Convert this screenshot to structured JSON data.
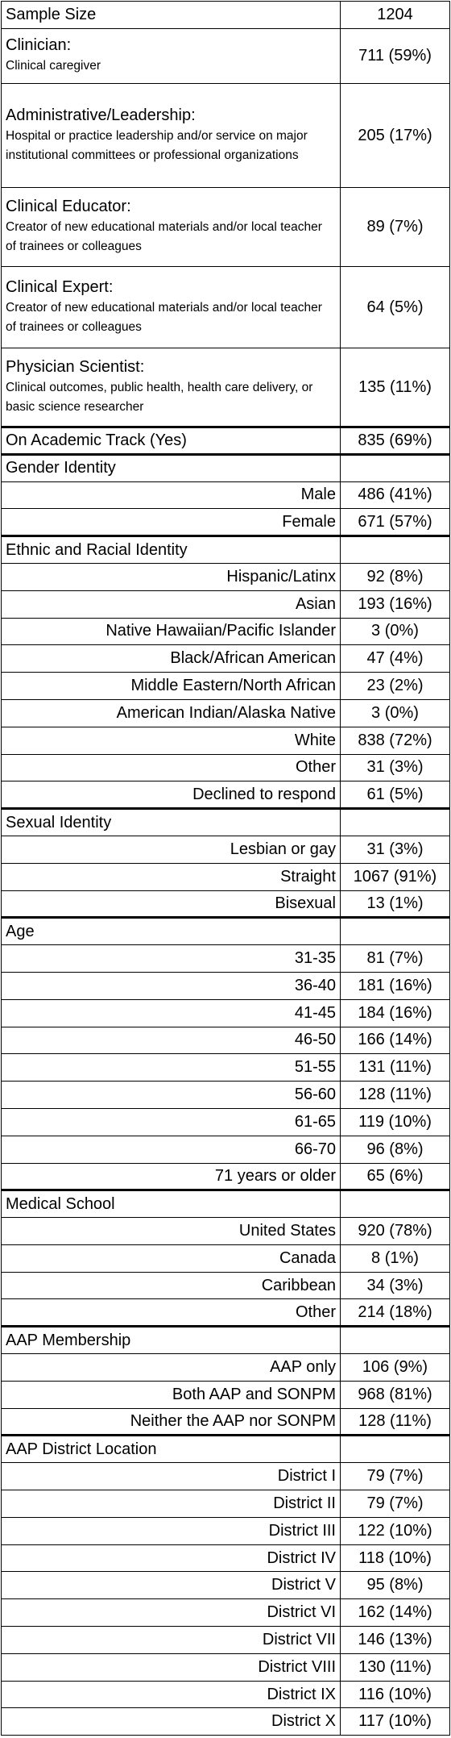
{
  "table": {
    "summary": {
      "label": "Sample Size",
      "value": "1204"
    },
    "roles": [
      {
        "label": "Clinician:",
        "description": "Clinical caregiver",
        "value": "711 (59%)"
      },
      {
        "label": "Administrative/Leadership:",
        "description": "Hospital or practice leadership and/or service on major institutional committees or professional organizations",
        "value": "205 (17%)"
      },
      {
        "label": "Clinical Educator:",
        "description": "Creator of new educational materials and/or local teacher of trainees or colleagues",
        "value": "89 (7%)"
      },
      {
        "label": "Clinical Expert:",
        "description": "Creator of new educational materials and/or local teacher of trainees or colleagues",
        "value": "64 (5%)"
      },
      {
        "label": "Physician Scientist:",
        "description": "Clinical outcomes, public health, health care delivery, or basic science researcher",
        "value": "135 (11%)"
      }
    ],
    "academic": {
      "label": "On Academic Track (Yes)",
      "value": "835 (69%)"
    },
    "sections": [
      {
        "title": "Gender Identity",
        "rows": [
          {
            "label": "Male",
            "value": "486 (41%)"
          },
          {
            "label": "Female",
            "value": "671 (57%)"
          }
        ]
      },
      {
        "title": "Ethnic and Racial Identity",
        "rows": [
          {
            "label": "Hispanic/Latinx",
            "value": "92 (8%)"
          },
          {
            "label": "Asian",
            "value": "193 (16%)"
          },
          {
            "label": "Native Hawaiian/Pacific Islander",
            "value": "3 (0%)"
          },
          {
            "label": "Black/African American",
            "value": "47 (4%)"
          },
          {
            "label": "Middle Eastern/North African",
            "value": "23 (2%)"
          },
          {
            "label": "American Indian/Alaska Native",
            "value": "3 (0%)"
          },
          {
            "label": "White",
            "value": "838 (72%)"
          },
          {
            "label": "Other",
            "value": "31 (3%)"
          },
          {
            "label": "Declined to respond",
            "value": "61 (5%)"
          }
        ]
      },
      {
        "title": "Sexual Identity",
        "rows": [
          {
            "label": "Lesbian or gay",
            "value": "31 (3%)"
          },
          {
            "label": "Straight",
            "value": "1067 (91%)"
          },
          {
            "label": "Bisexual",
            "value": "13 (1%)"
          }
        ]
      },
      {
        "title": "Age",
        "rows": [
          {
            "label": "31-35",
            "value": "81 (7%)"
          },
          {
            "label": "36-40",
            "value": "181 (16%)"
          },
          {
            "label": "41-45",
            "value": "184 (16%)"
          },
          {
            "label": "46-50",
            "value": "166 (14%)"
          },
          {
            "label": "51-55",
            "value": "131 (11%)"
          },
          {
            "label": "56-60",
            "value": "128 (11%)"
          },
          {
            "label": "61-65",
            "value": "119 (10%)"
          },
          {
            "label": "66-70",
            "value": "96 (8%)"
          },
          {
            "label": "71 years or older",
            "value": "65 (6%)"
          }
        ]
      },
      {
        "title": "Medical School",
        "rows": [
          {
            "label": "United States",
            "value": "920 (78%)"
          },
          {
            "label": "Canada",
            "value": "8 (1%)"
          },
          {
            "label": "Caribbean",
            "value": "34 (3%)"
          },
          {
            "label": "Other",
            "value": "214 (18%)"
          }
        ]
      },
      {
        "title": "AAP Membership",
        "rows": [
          {
            "label": "AAP only",
            "value": "106 (9%)"
          },
          {
            "label": "Both AAP and SONPM",
            "value": "968 (81%)"
          },
          {
            "label": "Neither the AAP nor SONPM",
            "value": "128 (11%)"
          }
        ]
      },
      {
        "title": "AAP District Location",
        "rows": [
          {
            "label": "District I",
            "value": "79 (7%)"
          },
          {
            "label": "District II",
            "value": "79 (7%)"
          },
          {
            "label": "District III",
            "value": "122 (10%)"
          },
          {
            "label": "District IV",
            "value": "118 (10%)"
          },
          {
            "label": "District V",
            "value": "95 (8%)"
          },
          {
            "label": "District VI",
            "value": "162 (14%)"
          },
          {
            "label": "District VII",
            "value": "146 (13%)"
          },
          {
            "label": "District VIII",
            "value": "130 (11%)"
          },
          {
            "label": "District IX",
            "value": "116 (10%)"
          },
          {
            "label": "District X",
            "value": "117 (10%)"
          }
        ]
      }
    ]
  }
}
